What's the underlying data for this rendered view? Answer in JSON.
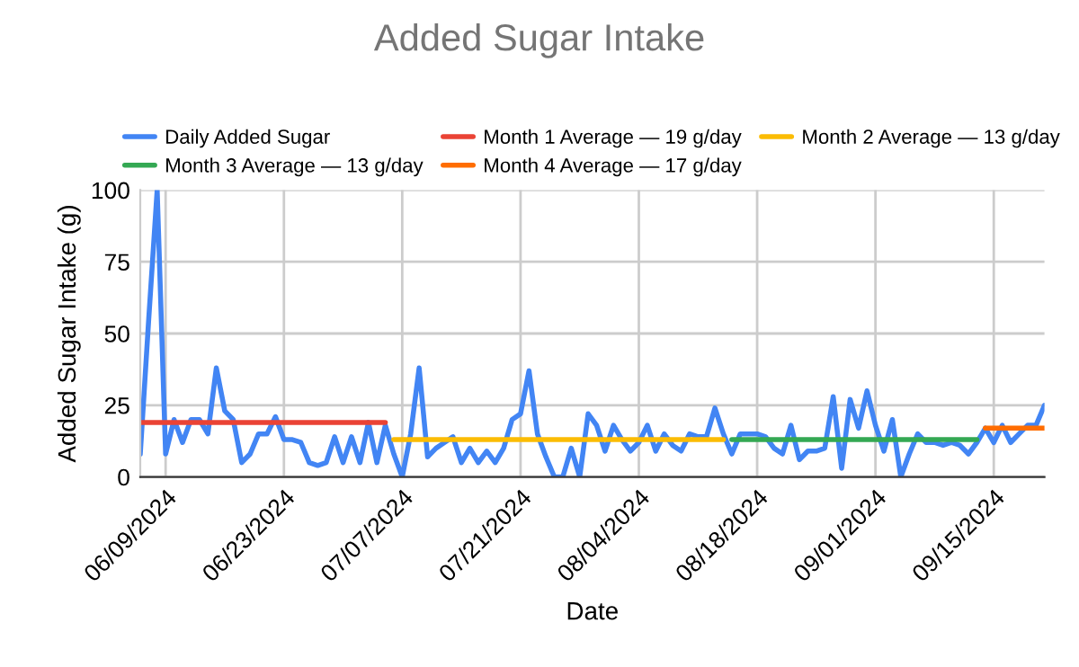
{
  "chart_data": {
    "type": "line",
    "title": "Added Sugar Intake",
    "xlabel": "Date",
    "ylabel": "Added Sugar Intake (g)",
    "xlim": [
      "2024-06-06",
      "2024-09-21"
    ],
    "ylim": [
      0,
      100
    ],
    "yticks": [
      0,
      25,
      50,
      75,
      100
    ],
    "xticks": [
      {
        "value": "2024-06-09",
        "label": "06/09/2024"
      },
      {
        "value": "2024-06-23",
        "label": "06/23/2024"
      },
      {
        "value": "2024-07-07",
        "label": "07/07/2024"
      },
      {
        "value": "2024-07-21",
        "label": "07/21/2024"
      },
      {
        "value": "2024-08-04",
        "label": "08/04/2024"
      },
      {
        "value": "2024-08-18",
        "label": "08/18/2024"
      },
      {
        "value": "2024-09-01",
        "label": "09/01/2024"
      },
      {
        "value": "2024-09-15",
        "label": "09/15/2024"
      }
    ],
    "grid": true,
    "legend": "top",
    "marker": "none",
    "line_style": "solid",
    "series": [
      {
        "name": "Daily Added Sugar",
        "color": "#4285f4",
        "x": [
          "2024-06-06",
          "2024-06-07",
          "2024-06-08",
          "2024-06-09",
          "2024-06-10",
          "2024-06-11",
          "2024-06-12",
          "2024-06-13",
          "2024-06-14",
          "2024-06-15",
          "2024-06-16",
          "2024-06-17",
          "2024-06-18",
          "2024-06-19",
          "2024-06-20",
          "2024-06-21",
          "2024-06-22",
          "2024-06-23",
          "2024-06-24",
          "2024-06-25",
          "2024-06-26",
          "2024-06-27",
          "2024-06-28",
          "2024-06-29",
          "2024-06-30",
          "2024-07-01",
          "2024-07-02",
          "2024-07-03",
          "2024-07-04",
          "2024-07-05",
          "2024-07-06",
          "2024-07-07",
          "2024-07-08",
          "2024-07-09",
          "2024-07-10",
          "2024-07-11",
          "2024-07-12",
          "2024-07-13",
          "2024-07-14",
          "2024-07-15",
          "2024-07-16",
          "2024-07-17",
          "2024-07-18",
          "2024-07-19",
          "2024-07-20",
          "2024-07-21",
          "2024-07-22",
          "2024-07-23",
          "2024-07-24",
          "2024-07-25",
          "2024-07-26",
          "2024-07-27",
          "2024-07-28",
          "2024-07-29",
          "2024-07-30",
          "2024-07-31",
          "2024-08-01",
          "2024-08-02",
          "2024-08-03",
          "2024-08-04",
          "2024-08-05",
          "2024-08-06",
          "2024-08-07",
          "2024-08-08",
          "2024-08-09",
          "2024-08-10",
          "2024-08-11",
          "2024-08-12",
          "2024-08-13",
          "2024-08-14",
          "2024-08-15",
          "2024-08-16",
          "2024-08-17",
          "2024-08-18",
          "2024-08-19",
          "2024-08-20",
          "2024-08-21",
          "2024-08-22",
          "2024-08-23",
          "2024-08-24",
          "2024-08-25",
          "2024-08-26",
          "2024-08-27",
          "2024-08-28",
          "2024-08-29",
          "2024-08-30",
          "2024-08-31",
          "2024-09-01",
          "2024-09-02",
          "2024-09-03",
          "2024-09-04",
          "2024-09-05",
          "2024-09-06",
          "2024-09-07",
          "2024-09-08",
          "2024-09-09",
          "2024-09-10",
          "2024-09-11",
          "2024-09-12",
          "2024-09-13",
          "2024-09-14",
          "2024-09-15",
          "2024-09-16",
          "2024-09-17",
          "2024-09-18",
          "2024-09-19",
          "2024-09-20",
          "2024-09-21"
        ],
        "values": [
          8,
          55,
          100,
          8,
          20,
          12,
          20,
          20,
          15,
          38,
          23,
          20,
          5,
          8,
          15,
          15,
          21,
          13,
          13,
          12,
          5,
          4,
          5,
          14,
          5,
          14,
          5,
          19,
          5,
          18,
          8,
          0,
          15,
          38,
          7,
          10,
          12,
          14,
          5,
          10,
          5,
          9,
          5,
          10,
          20,
          22,
          37,
          15,
          7,
          0,
          0,
          10,
          0,
          22,
          18,
          9,
          18,
          13,
          9,
          12,
          18,
          9,
          15,
          11,
          9,
          15,
          14,
          14,
          24,
          15,
          8,
          15,
          15,
          15,
          14,
          10,
          8,
          18,
          6,
          9,
          9,
          10,
          28,
          3,
          27,
          17,
          30,
          18,
          9,
          20,
          0,
          8,
          15,
          12,
          12,
          11,
          12,
          11,
          8,
          12,
          17,
          12,
          18,
          12,
          15,
          18,
          18,
          25
        ]
      },
      {
        "name": "Month 1 Average — 19 g/day",
        "color": "#ea4335",
        "x": [
          "2024-06-06",
          "2024-07-05"
        ],
        "values": [
          19,
          19
        ]
      },
      {
        "name": "Month 2 Average — 13 g/day",
        "color": "#fbbc04",
        "x": [
          "2024-07-06",
          "2024-08-14"
        ],
        "values": [
          13,
          13
        ]
      },
      {
        "name": "Month 3 Average — 13 g/day",
        "color": "#34a853",
        "x": [
          "2024-08-15",
          "2024-09-13"
        ],
        "values": [
          13,
          13
        ]
      },
      {
        "name": "Month 4 Average — 17 g/day",
        "color": "#ff6d01",
        "x": [
          "2024-09-14",
          "2024-09-21"
        ],
        "values": [
          17,
          17
        ]
      }
    ]
  }
}
